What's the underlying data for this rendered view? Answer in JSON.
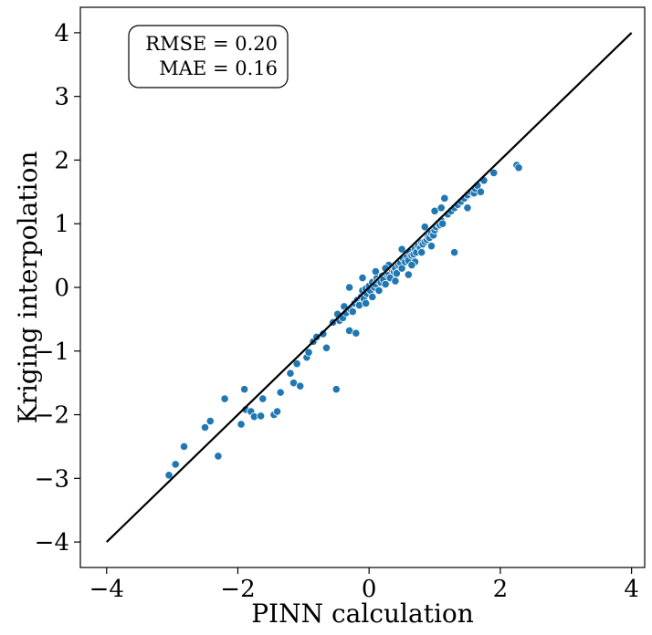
{
  "chart_data": {
    "type": "scatter",
    "title": "",
    "xlabel": "PINN calculation",
    "ylabel": "Kriging interpolation",
    "xlim": [
      -4.4,
      4.2
    ],
    "ylim": [
      -4.4,
      4.4
    ],
    "xticks": [
      -4,
      -2,
      0,
      2,
      4
    ],
    "yticks": [
      -4,
      -3,
      -2,
      -1,
      0,
      1,
      2,
      3,
      4
    ],
    "xtick_labels": [
      "−4",
      "−2",
      "0",
      "2",
      "4"
    ],
    "ytick_labels": [
      "−4",
      "−3",
      "−2",
      "−1",
      "0",
      "1",
      "2",
      "3",
      "4"
    ],
    "point_color": "#1f77b4",
    "line_color": "#000000",
    "reference_line": {
      "x": [
        -4,
        4
      ],
      "y": [
        -4,
        4
      ]
    },
    "annotation": {
      "lines": [
        "RMSE = 0.20",
        "MAE = 0.16"
      ],
      "placement": "top-left"
    },
    "series": [
      {
        "name": "points",
        "points": [
          [
            -3.05,
            -2.95
          ],
          [
            -2.95,
            -2.78
          ],
          [
            -2.82,
            -2.5
          ],
          [
            -2.5,
            -2.2
          ],
          [
            -2.42,
            -2.1
          ],
          [
            -2.3,
            -2.65
          ],
          [
            -2.2,
            -1.75
          ],
          [
            -1.95,
            -2.15
          ],
          [
            -1.9,
            -1.6
          ],
          [
            -1.88,
            -1.92
          ],
          [
            -1.8,
            -1.95
          ],
          [
            -1.75,
            -2.03
          ],
          [
            -1.65,
            -2.02
          ],
          [
            -1.62,
            -1.75
          ],
          [
            -1.45,
            -2.0
          ],
          [
            -1.4,
            -1.95
          ],
          [
            -1.35,
            -1.65
          ],
          [
            -1.2,
            -1.35
          ],
          [
            -1.15,
            -1.5
          ],
          [
            -1.1,
            -1.2
          ],
          [
            -1.05,
            -1.55
          ],
          [
            -0.95,
            -1.1
          ],
          [
            -0.92,
            -1.02
          ],
          [
            -0.85,
            -0.85
          ],
          [
            -0.8,
            -0.78
          ],
          [
            -0.7,
            -0.73
          ],
          [
            -0.65,
            -0.95
          ],
          [
            -0.5,
            -1.6
          ],
          [
            -0.55,
            -0.55
          ],
          [
            -0.48,
            -0.42
          ],
          [
            -0.45,
            -0.52
          ],
          [
            -0.4,
            -0.48
          ],
          [
            -0.38,
            -0.3
          ],
          [
            -0.35,
            -0.4
          ],
          [
            -0.3,
            -0.68
          ],
          [
            -0.28,
            -0.35
          ],
          [
            -0.25,
            -0.38
          ],
          [
            -0.22,
            -0.25
          ],
          [
            -0.2,
            -0.72
          ],
          [
            -0.18,
            -0.2
          ],
          [
            -0.15,
            -0.28
          ],
          [
            -0.12,
            -0.15
          ],
          [
            -0.1,
            -0.05
          ],
          [
            -0.08,
            -0.18
          ],
          [
            -0.05,
            -0.02
          ],
          [
            -0.03,
            -0.1
          ],
          [
            0.0,
            0.02
          ],
          [
            0.02,
            -0.05
          ],
          [
            0.05,
            0.08
          ],
          [
            0.08,
            0.0
          ],
          [
            0.1,
            0.05
          ],
          [
            0.12,
            0.15
          ],
          [
            0.15,
            0.1
          ],
          [
            0.18,
            0.08
          ],
          [
            0.2,
            0.18
          ],
          [
            0.22,
            0.12
          ],
          [
            0.25,
            0.05
          ],
          [
            0.28,
            0.2
          ],
          [
            0.3,
            0.22
          ],
          [
            0.32,
            0.15
          ],
          [
            0.35,
            0.28
          ],
          [
            0.38,
            0.25
          ],
          [
            0.4,
            0.3
          ],
          [
            0.42,
            0.22
          ],
          [
            0.45,
            0.35
          ],
          [
            0.48,
            0.38
          ],
          [
            0.5,
            0.3
          ],
          [
            0.52,
            0.45
          ],
          [
            0.55,
            0.4
          ],
          [
            0.58,
            0.48
          ],
          [
            0.6,
            0.42
          ],
          [
            0.62,
            0.55
          ],
          [
            0.65,
            0.5
          ],
          [
            0.68,
            0.52
          ],
          [
            0.7,
            0.6
          ],
          [
            0.72,
            0.55
          ],
          [
            0.75,
            0.65
          ],
          [
            0.78,
            0.62
          ],
          [
            0.8,
            0.7
          ],
          [
            0.82,
            0.68
          ],
          [
            0.85,
            0.72
          ],
          [
            0.88,
            0.75
          ],
          [
            0.9,
            0.8
          ],
          [
            0.92,
            0.78
          ],
          [
            0.95,
            0.85
          ],
          [
            0.98,
            0.82
          ],
          [
            1.0,
            0.9
          ],
          [
            1.02,
            0.95
          ],
          [
            1.05,
            1.0
          ],
          [
            1.08,
            0.98
          ],
          [
            1.1,
            1.05
          ],
          [
            1.12,
            1.0
          ],
          [
            1.15,
            1.4
          ],
          [
            1.2,
            1.15
          ],
          [
            1.25,
            1.2
          ],
          [
            1.3,
            1.25
          ],
          [
            1.35,
            1.3
          ],
          [
            1.4,
            1.35
          ],
          [
            1.45,
            1.4
          ],
          [
            1.5,
            1.45
          ],
          [
            1.55,
            1.5
          ],
          [
            1.6,
            1.48
          ],
          [
            1.62,
            1.55
          ],
          [
            1.65,
            1.6
          ],
          [
            1.7,
            1.5
          ],
          [
            1.75,
            1.68
          ],
          [
            1.9,
            1.8
          ],
          [
            2.25,
            1.92
          ],
          [
            2.28,
            1.88
          ],
          [
            0.1,
            0.25
          ],
          [
            0.15,
            -0.05
          ],
          [
            0.3,
            0.35
          ],
          [
            -0.3,
            0.0
          ],
          [
            0.5,
            0.6
          ],
          [
            0.7,
            0.4
          ],
          [
            0.85,
            0.95
          ],
          [
            1.0,
            1.2
          ],
          [
            1.3,
            0.55
          ],
          [
            1.5,
            1.25
          ],
          [
            0.6,
            0.2
          ],
          [
            -0.1,
            0.15
          ],
          [
            0.05,
            -0.15
          ],
          [
            0.4,
            0.1
          ],
          [
            0.65,
            0.35
          ],
          [
            0.95,
            0.65
          ],
          [
            1.1,
            1.25
          ],
          [
            0.25,
            0.3
          ],
          [
            -0.05,
            -0.25
          ],
          [
            0.8,
            0.55
          ]
        ]
      }
    ]
  }
}
